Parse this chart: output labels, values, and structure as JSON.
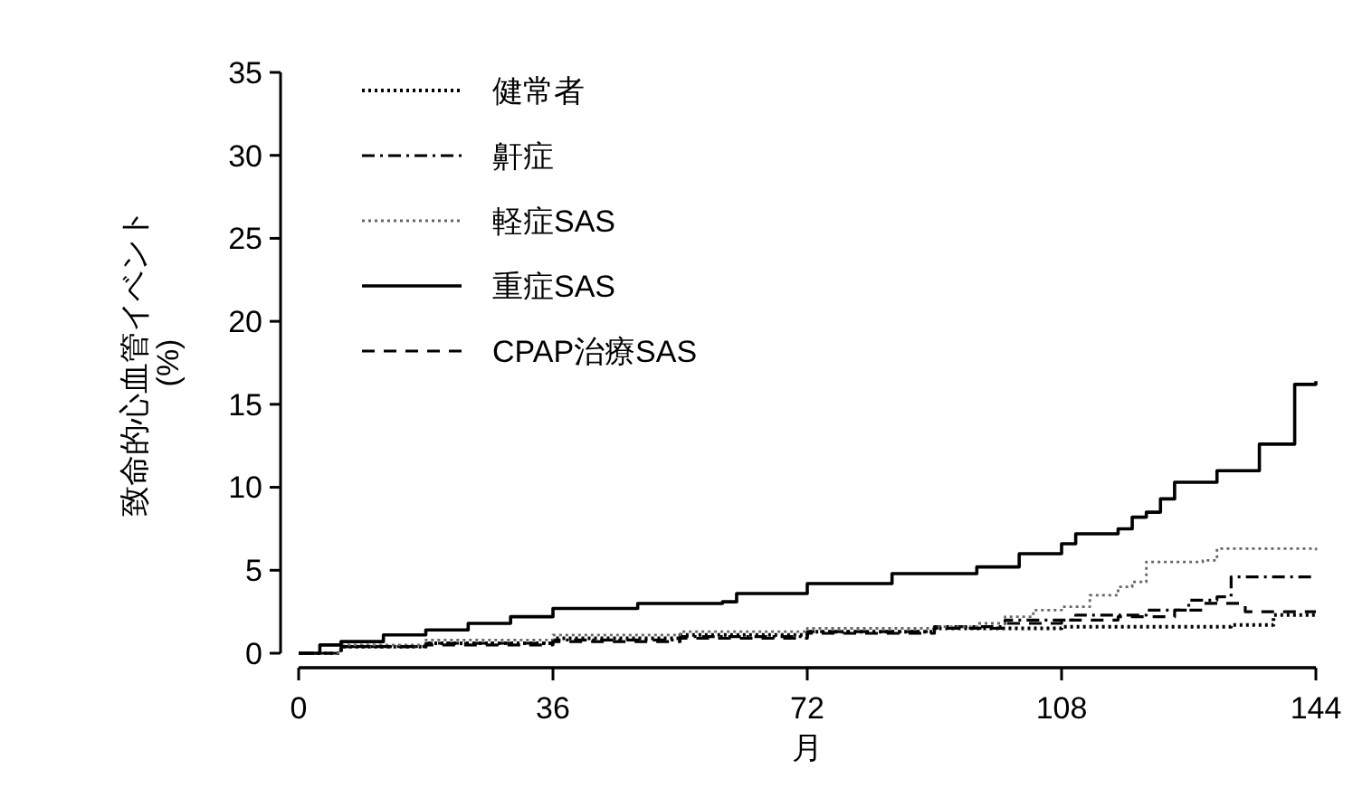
{
  "chart_data": {
    "type": "step",
    "xlabel": "月",
    "ylabel": "致命的心血管イベント\n(%)",
    "xlim": [
      0,
      144
    ],
    "xticks": [
      0,
      36,
      72,
      108,
      144
    ],
    "ylim": [
      0,
      35
    ],
    "yticks": [
      0,
      5,
      10,
      15,
      20,
      25,
      30,
      35
    ],
    "grid": false,
    "legend": "top left",
    "series": [
      {
        "name": "健常者",
        "color": "#000000",
        "line_style": "dotted",
        "x": [
          0,
          6,
          18,
          36,
          54,
          72,
          90,
          108,
          120,
          132,
          136,
          138,
          144
        ],
        "values": [
          0,
          0.4,
          0.6,
          0.9,
          1.1,
          1.3,
          1.5,
          1.6,
          1.6,
          1.7,
          1.7,
          2.3,
          2.3
        ]
      },
      {
        "name": "鼾症",
        "color": "#000000",
        "line_style": "dashdot",
        "x": [
          0,
          6,
          18,
          36,
          54,
          72,
          90,
          100,
          110,
          120,
          126,
          130,
          132,
          144
        ],
        "values": [
          0,
          0.4,
          0.6,
          0.8,
          1.0,
          1.3,
          1.6,
          2.0,
          2.3,
          2.6,
          3.2,
          3.4,
          4.6,
          4.6
        ]
      },
      {
        "name": "軽症SAS",
        "color": "#666666",
        "line_style": "dotted",
        "x": [
          0,
          6,
          18,
          36,
          54,
          72,
          90,
          96,
          100,
          104,
          108,
          112,
          116,
          118,
          120,
          128,
          130,
          144
        ],
        "values": [
          0,
          0.5,
          0.8,
          1.1,
          1.3,
          1.5,
          1.6,
          1.8,
          2.2,
          2.6,
          2.8,
          3.5,
          4.0,
          4.3,
          5.5,
          5.6,
          6.3,
          6.2
        ]
      },
      {
        "name": "重症SAS",
        "color": "#000000",
        "line_style": "solid",
        "x": [
          0,
          3,
          6,
          12,
          18,
          24,
          30,
          36,
          48,
          60,
          62,
          72,
          84,
          96,
          102,
          108,
          110,
          116,
          118,
          120,
          122,
          124,
          128,
          130,
          134,
          136,
          140,
          141,
          144
        ],
        "values": [
          0,
          0.5,
          0.7,
          1.1,
          1.4,
          1.8,
          2.2,
          2.7,
          3.0,
          3.1,
          3.6,
          4.2,
          4.8,
          5.2,
          6.0,
          6.6,
          7.2,
          7.5,
          8.2,
          8.5,
          9.3,
          10.3,
          10.3,
          11.0,
          11.0,
          12.6,
          12.6,
          16.2,
          16.4
        ]
      },
      {
        "name": "CPAP治療SAS",
        "color": "#000000",
        "line_style": "dashed",
        "x": [
          0,
          6,
          18,
          36,
          54,
          72,
          90,
          100,
          108,
          116,
          124,
          128,
          134,
          144
        ],
        "values": [
          0,
          0.4,
          0.5,
          0.7,
          0.9,
          1.2,
          1.5,
          1.8,
          2.0,
          2.2,
          2.6,
          3.0,
          2.5,
          2.5
        ]
      }
    ]
  }
}
